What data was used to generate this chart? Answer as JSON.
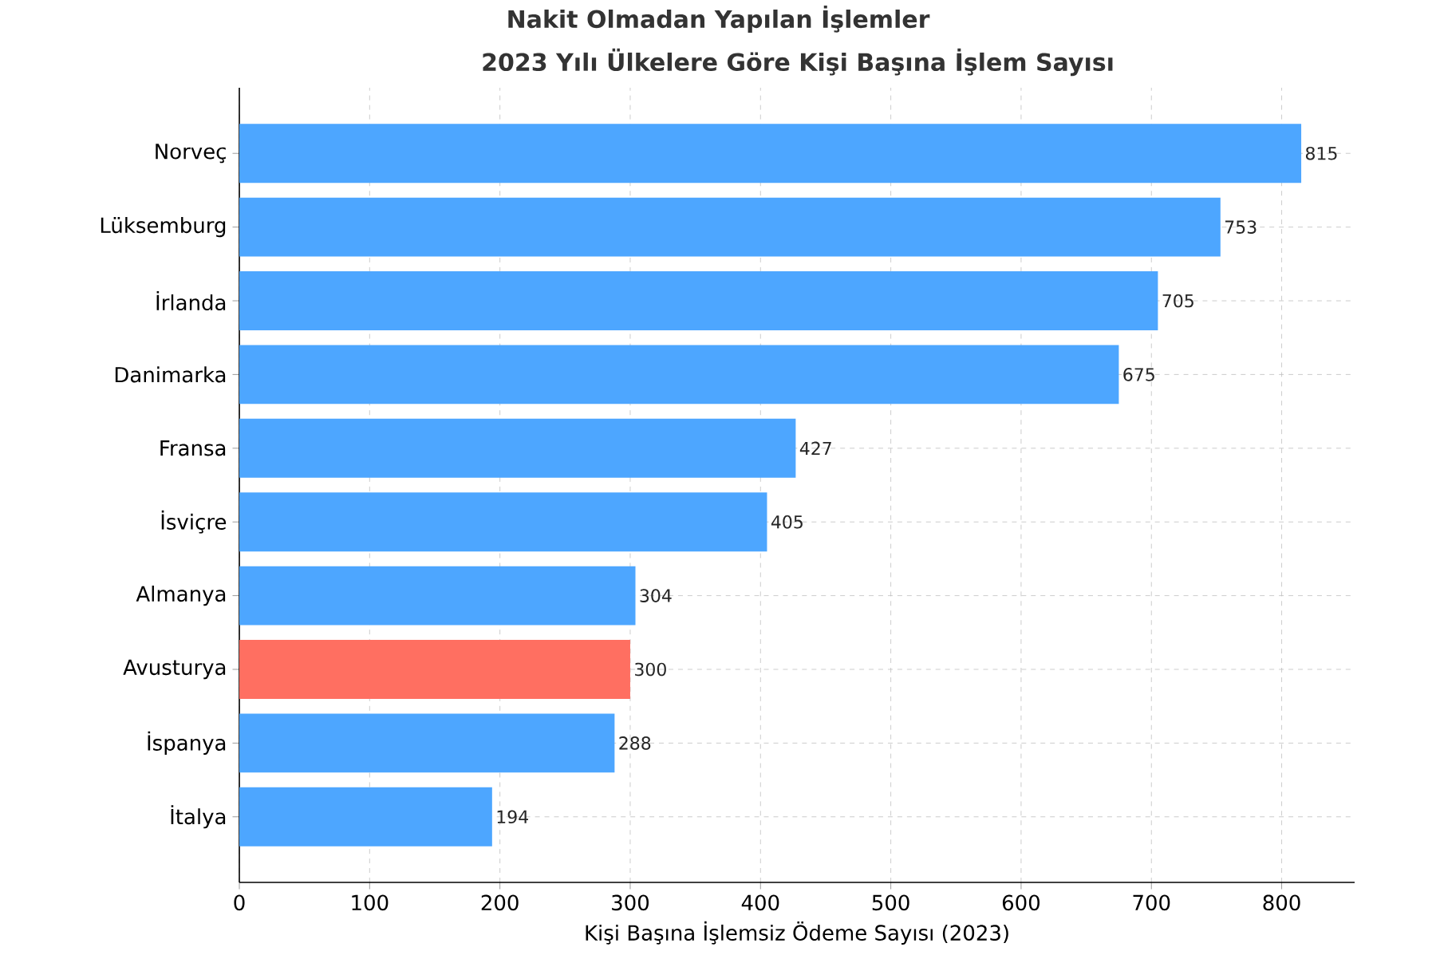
{
  "chart_data": {
    "type": "bar",
    "orientation": "horizontal",
    "title": "Nakit Olmadan Yapılan İşlemler",
    "subtitle": "2023 Yılı Ülkelere Göre Kişi Başına İşlem Sayısı",
    "xlabel": "Kişi Başına İşlemsiz Ödeme Sayısı (2023)",
    "categories": [
      "Norveç",
      "Lüksemburg",
      "İrlanda",
      "Danimarka",
      "Fransa",
      "İsviçre",
      "Almanya",
      "Avusturya",
      "İspanya",
      "İtalya"
    ],
    "values": [
      815,
      753,
      705,
      675,
      427,
      405,
      304,
      300,
      288,
      194
    ],
    "colors": [
      "#4da6ff",
      "#4da6ff",
      "#4da6ff",
      "#4da6ff",
      "#4da6ff",
      "#4da6ff",
      "#4da6ff",
      "#ff6f61",
      "#4da6ff",
      "#4da6ff"
    ],
    "xlim": [
      0,
      856
    ],
    "xticks": [
      0,
      100,
      200,
      300,
      400,
      500,
      600,
      700,
      800
    ],
    "grid": true,
    "data_labels": true
  }
}
